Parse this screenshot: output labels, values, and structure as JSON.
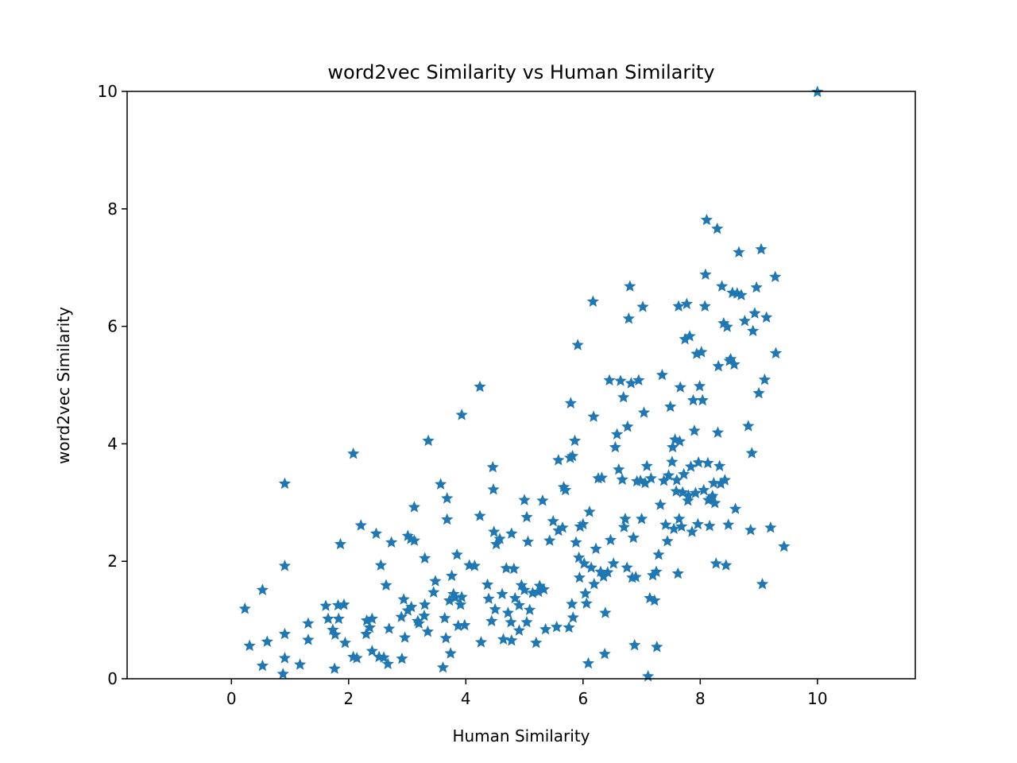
{
  "chart_data": {
    "type": "scatter",
    "title": "word2vec Similarity vs Human Similarity",
    "xlabel": "Human Similarity",
    "ylabel": "word2vec Similarity",
    "xlim": [
      -1.78,
      11.67
    ],
    "ylim": [
      0,
      10
    ],
    "x_ticks": [
      "0",
      "2",
      "4",
      "6",
      "8",
      "10"
    ],
    "y_ticks": [
      "0",
      "2",
      "4",
      "6",
      "8",
      "10"
    ],
    "grid": false,
    "marker": "star",
    "color": "#1f77b4",
    "series": [
      {
        "points": [
          [
            0.23,
            1.19
          ],
          [
            0.31,
            0.56
          ],
          [
            0.53,
            0.22
          ],
          [
            0.53,
            1.51
          ],
          [
            0.61,
            0.63
          ],
          [
            0.88,
            0.08
          ],
          [
            0.91,
            0.76
          ],
          [
            0.91,
            0.35
          ],
          [
            0.91,
            1.92
          ],
          [
            0.91,
            3.32
          ],
          [
            1.17,
            0.24
          ],
          [
            1.31,
            0.94
          ],
          [
            1.31,
            0.66
          ],
          [
            1.61,
            1.24
          ],
          [
            1.65,
            1.02
          ],
          [
            1.73,
            0.83
          ],
          [
            1.76,
            0.17
          ],
          [
            1.77,
            0.75
          ],
          [
            1.82,
            1.25
          ],
          [
            1.83,
            1.02
          ],
          [
            1.86,
            2.29
          ],
          [
            1.92,
            1.26
          ],
          [
            1.94,
            0.61
          ],
          [
            2.08,
            0.37
          ],
          [
            2.08,
            3.83
          ],
          [
            2.14,
            0.35
          ],
          [
            2.21,
            2.61
          ],
          [
            2.3,
            0.76
          ],
          [
            2.31,
            0.99
          ],
          [
            2.36,
            0.87
          ],
          [
            2.4,
            1.02
          ],
          [
            2.4,
            0.47
          ],
          [
            2.47,
            2.47
          ],
          [
            2.52,
            0.37
          ],
          [
            2.55,
            1.93
          ],
          [
            2.6,
            0.36
          ],
          [
            2.64,
            1.59
          ],
          [
            2.67,
            0.25
          ],
          [
            2.69,
            0.85
          ],
          [
            2.73,
            2.32
          ],
          [
            2.9,
            1.05
          ],
          [
            2.91,
            0.34
          ],
          [
            2.94,
            1.35
          ],
          [
            2.96,
            0.7
          ],
          [
            3.01,
            1.16
          ],
          [
            3.01,
            2.43
          ],
          [
            3.06,
            2.38
          ],
          [
            3.07,
            1.22
          ],
          [
            3.12,
            2.35
          ],
          [
            3.12,
            2.92
          ],
          [
            3.18,
            0.98
          ],
          [
            3.2,
            0.94
          ],
          [
            3.29,
            1.07
          ],
          [
            3.3,
            1.26
          ],
          [
            3.3,
            2.05
          ],
          [
            3.35,
            0.8
          ],
          [
            3.36,
            4.05
          ],
          [
            3.45,
            1.47
          ],
          [
            3.48,
            1.66
          ],
          [
            3.57,
            3.31
          ],
          [
            3.61,
            0.19
          ],
          [
            3.64,
            1.03
          ],
          [
            3.66,
            0.69
          ],
          [
            3.68,
            3.07
          ],
          [
            3.68,
            2.71
          ],
          [
            3.72,
            1.33
          ],
          [
            3.74,
            0.43
          ],
          [
            3.76,
            1.75
          ],
          [
            3.79,
            1.44
          ],
          [
            3.82,
            1.38
          ],
          [
            3.85,
            2.11
          ],
          [
            3.87,
            0.9
          ],
          [
            3.91,
            1.26
          ],
          [
            3.93,
            1.39
          ],
          [
            3.93,
            4.49
          ],
          [
            3.98,
            0.91
          ],
          [
            4.06,
            1.93
          ],
          [
            4.15,
            1.92
          ],
          [
            4.24,
            4.97
          ],
          [
            4.24,
            2.77
          ],
          [
            4.26,
            0.62
          ],
          [
            4.37,
            1.6
          ],
          [
            4.39,
            1.36
          ],
          [
            4.44,
            0.98
          ],
          [
            4.46,
            3.6
          ],
          [
            4.47,
            3.22
          ],
          [
            4.48,
            2.5
          ],
          [
            4.5,
            1.18
          ],
          [
            4.52,
            2.29
          ],
          [
            4.58,
            2.38
          ],
          [
            4.62,
            1.44
          ],
          [
            4.64,
            0.67
          ],
          [
            4.69,
            1.88
          ],
          [
            4.72,
            1.12
          ],
          [
            4.77,
            0.96
          ],
          [
            4.78,
            0.65
          ],
          [
            4.78,
            2.47
          ],
          [
            4.82,
            1.87
          ],
          [
            4.84,
            1.37
          ],
          [
            4.91,
            0.82
          ],
          [
            4.91,
            1.25
          ],
          [
            4.95,
            1.59
          ],
          [
            5.0,
            1.51
          ],
          [
            5.0,
            3.04
          ],
          [
            5.04,
            0.96
          ],
          [
            5.04,
            2.75
          ],
          [
            5.06,
            2.33
          ],
          [
            5.09,
            1.17
          ],
          [
            5.14,
            1.46
          ],
          [
            5.2,
            0.61
          ],
          [
            5.24,
            1.48
          ],
          [
            5.26,
            1.58
          ],
          [
            5.31,
            3.03
          ],
          [
            5.33,
            1.52
          ],
          [
            5.36,
            0.84
          ],
          [
            5.43,
            2.35
          ],
          [
            5.49,
            2.68
          ],
          [
            5.55,
            0.88
          ],
          [
            5.58,
            3.72
          ],
          [
            5.58,
            2.52
          ],
          [
            5.65,
            2.57
          ],
          [
            5.67,
            3.26
          ],
          [
            5.7,
            3.21
          ],
          [
            5.76,
            0.87
          ],
          [
            5.78,
            3.76
          ],
          [
            5.79,
            4.69
          ],
          [
            5.81,
            1.27
          ],
          [
            5.82,
            3.79
          ],
          [
            5.83,
            1.04
          ],
          [
            5.86,
            4.05
          ],
          [
            5.88,
            2.32
          ],
          [
            5.91,
            5.68
          ],
          [
            5.93,
            2.06
          ],
          [
            5.94,
            1.72
          ],
          [
            5.95,
            2.59
          ],
          [
            6.0,
            2.63
          ],
          [
            6.02,
            1.96
          ],
          [
            6.04,
            1.45
          ],
          [
            6.06,
            1.28
          ],
          [
            6.09,
            0.26
          ],
          [
            6.11,
            2.84
          ],
          [
            6.14,
            1.89
          ],
          [
            6.17,
            6.42
          ],
          [
            6.18,
            4.46
          ],
          [
            6.19,
            1.61
          ],
          [
            6.22,
            2.21
          ],
          [
            6.26,
            3.41
          ],
          [
            6.3,
            1.82
          ],
          [
            6.32,
            3.42
          ],
          [
            6.35,
            1.74
          ],
          [
            6.37,
            0.42
          ],
          [
            6.38,
            1.12
          ],
          [
            6.42,
            1.81
          ],
          [
            6.45,
            5.08
          ],
          [
            6.47,
            2.36
          ],
          [
            6.52,
            1.96
          ],
          [
            6.55,
            3.94
          ],
          [
            6.58,
            4.16
          ],
          [
            6.61,
            3.56
          ],
          [
            6.64,
            5.07
          ],
          [
            6.67,
            3.39
          ],
          [
            6.69,
            4.79
          ],
          [
            6.7,
            2.58
          ],
          [
            6.72,
            2.72
          ],
          [
            6.75,
            1.89
          ],
          [
            6.76,
            4.29
          ],
          [
            6.78,
            6.13
          ],
          [
            6.8,
            6.68
          ],
          [
            6.82,
            5.03
          ],
          [
            6.84,
            1.72
          ],
          [
            6.86,
            2.4
          ],
          [
            6.88,
            0.57
          ],
          [
            6.9,
            1.73
          ],
          [
            6.92,
            3.36
          ],
          [
            6.95,
            5.08
          ],
          [
            6.98,
            3.37
          ],
          [
            7.0,
            2.72
          ],
          [
            7.02,
            6.33
          ],
          [
            7.04,
            4.53
          ],
          [
            7.06,
            3.33
          ],
          [
            7.09,
            3.62
          ],
          [
            7.11,
            0.04
          ],
          [
            7.14,
            1.37
          ],
          [
            7.16,
            3.41
          ],
          [
            7.19,
            1.76
          ],
          [
            7.22,
            1.33
          ],
          [
            7.25,
            1.82
          ],
          [
            7.26,
            0.54
          ],
          [
            7.29,
            2.11
          ],
          [
            7.32,
            2.96
          ],
          [
            7.35,
            5.17
          ],
          [
            7.38,
            3.37
          ],
          [
            7.41,
            2.62
          ],
          [
            7.44,
            2.34
          ],
          [
            7.46,
            3.46
          ],
          [
            7.49,
            4.63
          ],
          [
            7.52,
            3.69
          ],
          [
            7.53,
            3.94
          ],
          [
            7.55,
            2.55
          ],
          [
            7.57,
            4.07
          ],
          [
            7.59,
            3.19
          ],
          [
            7.6,
            3.38
          ],
          [
            7.62,
            1.79
          ],
          [
            7.63,
            6.34
          ],
          [
            7.64,
            2.72
          ],
          [
            7.65,
            4.04
          ],
          [
            7.66,
            4.96
          ],
          [
            7.68,
            2.59
          ],
          [
            7.7,
            3.17
          ],
          [
            7.72,
            3.48
          ],
          [
            7.74,
            5.78
          ],
          [
            7.77,
            6.38
          ],
          [
            7.79,
            3.03
          ],
          [
            7.8,
            3.12
          ],
          [
            7.82,
            5.83
          ],
          [
            7.84,
            3.61
          ],
          [
            7.86,
            2.5
          ],
          [
            7.88,
            4.74
          ],
          [
            7.9,
            4.22
          ],
          [
            7.92,
            3.16
          ],
          [
            7.94,
            5.53
          ],
          [
            7.96,
            2.63
          ],
          [
            7.97,
            3.68
          ],
          [
            7.99,
            4.98
          ],
          [
            8.02,
            5.56
          ],
          [
            8.04,
            4.74
          ],
          [
            8.06,
            3.21
          ],
          [
            8.08,
            6.34
          ],
          [
            8.09,
            6.88
          ],
          [
            8.11,
            7.81
          ],
          [
            8.13,
            3.67
          ],
          [
            8.14,
            3.04
          ],
          [
            8.16,
            2.6
          ],
          [
            8.19,
            3.07
          ],
          [
            8.21,
            3.11
          ],
          [
            8.23,
            3.33
          ],
          [
            8.25,
            2.99
          ],
          [
            8.27,
            1.96
          ],
          [
            8.29,
            7.66
          ],
          [
            8.3,
            4.19
          ],
          [
            8.31,
            5.32
          ],
          [
            8.33,
            3.62
          ],
          [
            8.35,
            3.32
          ],
          [
            8.37,
            6.68
          ],
          [
            8.4,
            6.05
          ],
          [
            8.42,
            3.38
          ],
          [
            8.44,
            1.93
          ],
          [
            8.46,
            5.99
          ],
          [
            8.48,
            2.62
          ],
          [
            8.5,
            5.41
          ],
          [
            8.52,
            5.44
          ],
          [
            8.55,
            6.57
          ],
          [
            8.58,
            5.35
          ],
          [
            8.6,
            2.89
          ],
          [
            8.63,
            6.56
          ],
          [
            8.66,
            7.26
          ],
          [
            8.7,
            6.53
          ],
          [
            8.76,
            6.09
          ],
          [
            8.82,
            4.3
          ],
          [
            8.86,
            2.53
          ],
          [
            8.88,
            3.84
          ],
          [
            8.9,
            5.92
          ],
          [
            8.93,
            6.22
          ],
          [
            8.96,
            6.66
          ],
          [
            9.0,
            4.86
          ],
          [
            9.04,
            7.31
          ],
          [
            9.06,
            1.61
          ],
          [
            9.1,
            5.09
          ],
          [
            9.13,
            6.15
          ],
          [
            9.2,
            2.57
          ],
          [
            9.28,
            6.84
          ],
          [
            9.29,
            5.54
          ],
          [
            9.43,
            2.25
          ],
          [
            10.0,
            9.99
          ]
        ]
      }
    ]
  }
}
